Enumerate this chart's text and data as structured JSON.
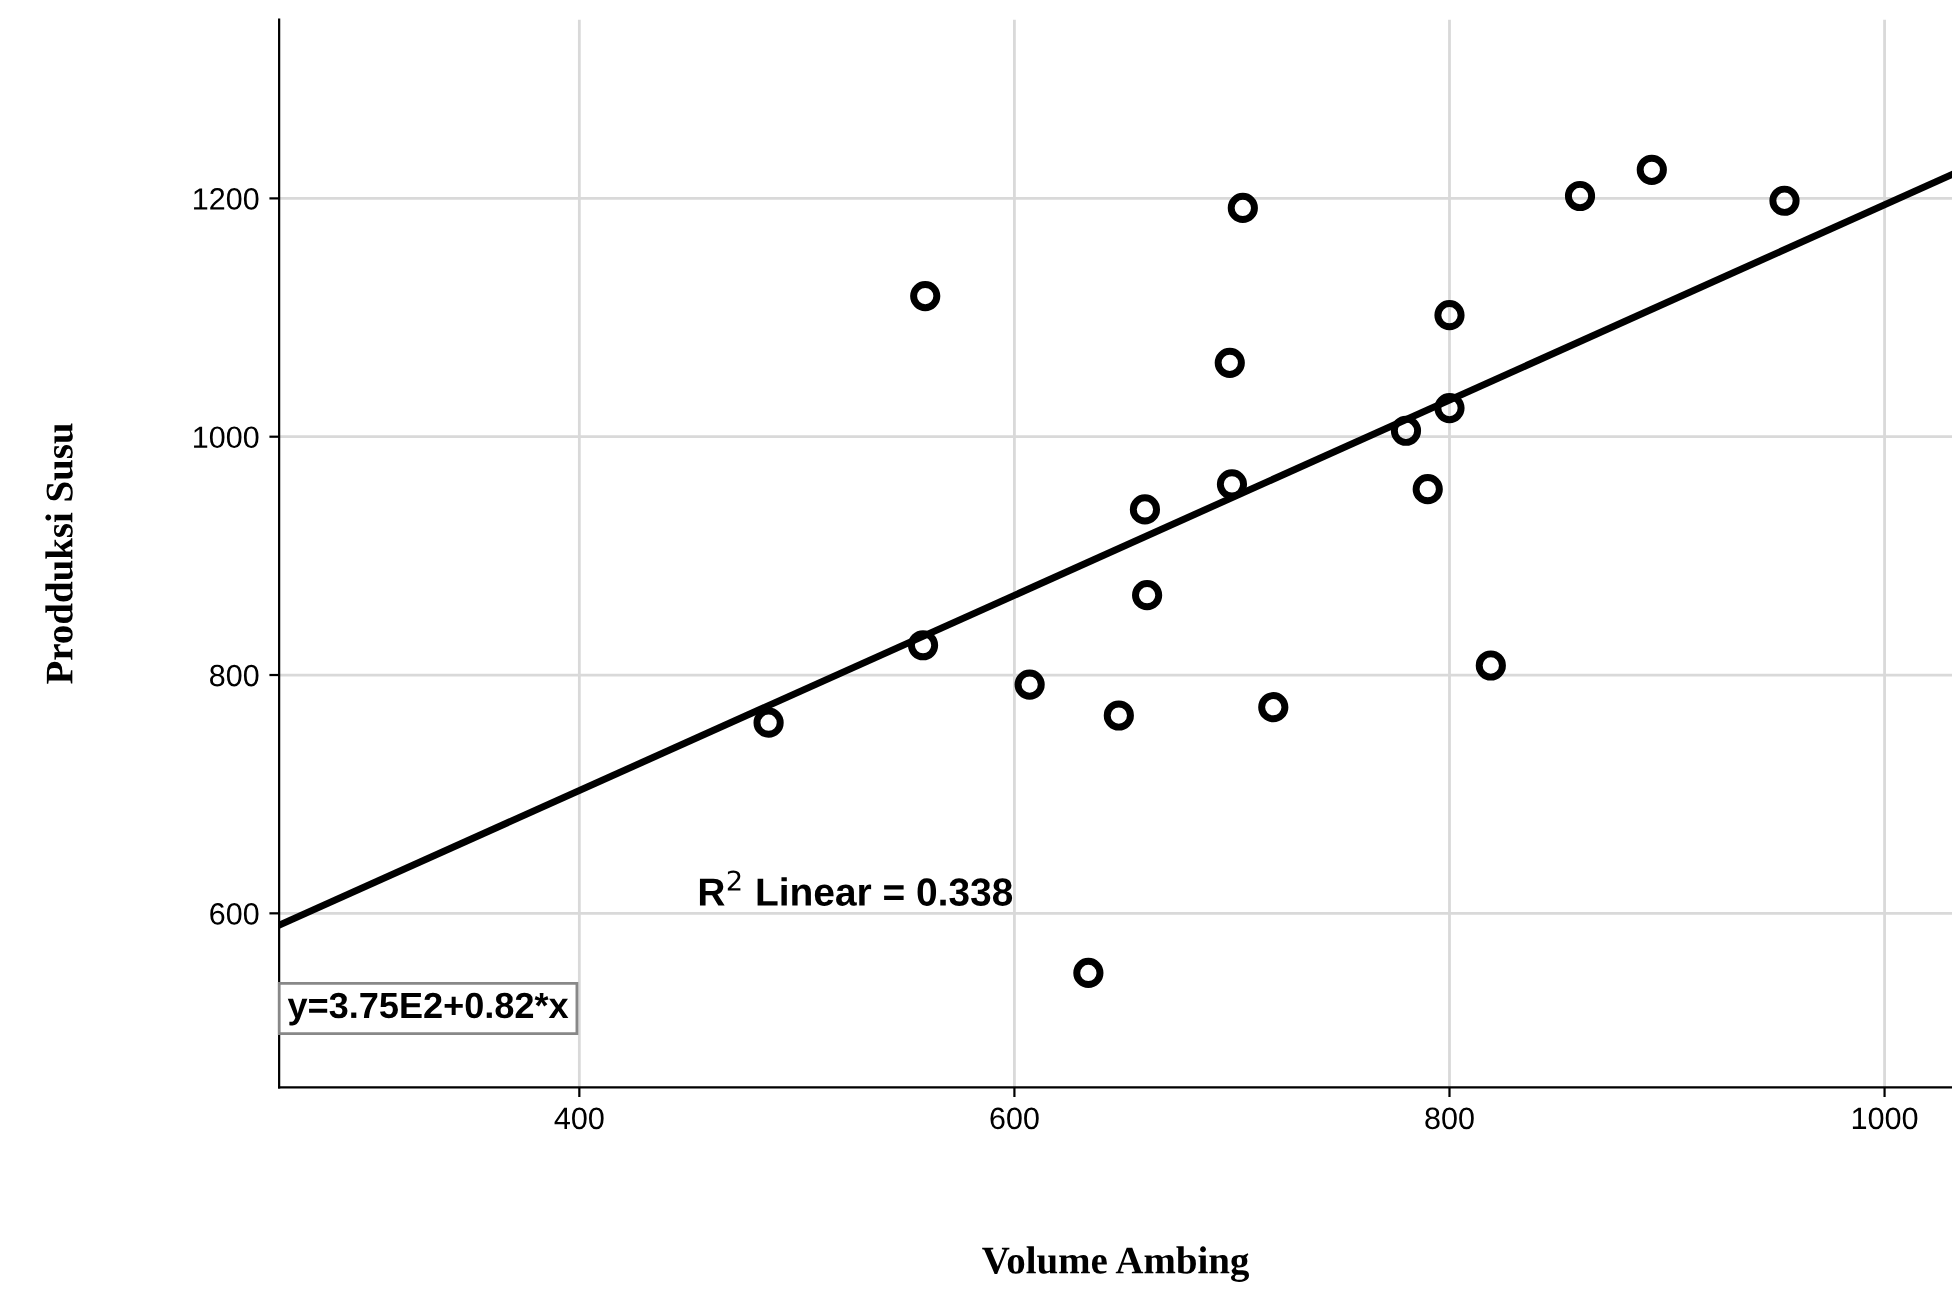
{
  "chart_data": {
    "type": "scatter",
    "xlabel": "Volume Ambing",
    "ylabel": "Prodduksi Susu",
    "xlim": [
      262,
      1031
    ],
    "ylim": [
      454,
      1350
    ],
    "xticks": [
      400,
      600,
      800,
      1000
    ],
    "yticks": [
      600,
      800,
      1000,
      1200
    ],
    "grid": true,
    "series": [
      {
        "color": "#000000",
        "marker": "circle",
        "x": [
          487,
          559,
          558,
          607,
          634,
          648,
          660,
          661,
          699,
          700,
          705,
          719,
          780,
          790,
          800,
          800,
          819,
          860,
          893,
          954
        ],
        "values": [
          760,
          1118,
          825,
          792,
          550,
          766,
          939,
          867,
          1062,
          960,
          1192,
          773,
          1005,
          956,
          1102,
          1024,
          808,
          1202,
          1224,
          1198
        ]
      },
      {
        "type": "line",
        "marker": "none",
        "color": "#000000",
        "x": [
          262,
          1031
        ],
        "values": [
          590,
          1220
        ]
      }
    ],
    "annotations": [
      "R$^{2}$ Linear = 0.338",
      "y=3.75E2+0.82*x"
    ]
  }
}
